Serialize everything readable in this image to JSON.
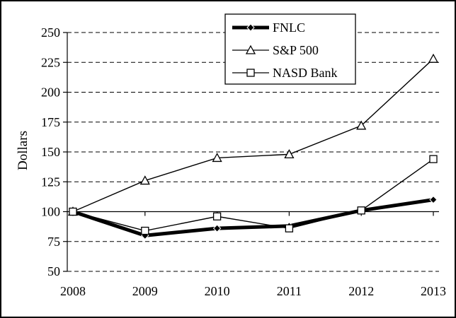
{
  "chart_data": {
    "type": "line",
    "title": "",
    "xlabel": "",
    "ylabel": "Dollars",
    "categories": [
      "2008",
      "2009",
      "2010",
      "2011",
      "2012",
      "2013"
    ],
    "series": [
      {
        "name": "FNLC",
        "marker": "diamond",
        "thick": true,
        "values": [
          100,
          80,
          86,
          88,
          101,
          110
        ]
      },
      {
        "name": "S&P 500",
        "marker": "triangle",
        "thick": false,
        "values": [
          100,
          126,
          145,
          148,
          172,
          228
        ]
      },
      {
        "name": "NASD Bank",
        "marker": "square",
        "thick": false,
        "values": [
          100,
          84,
          96,
          86,
          101,
          144
        ]
      }
    ],
    "ylim": [
      50,
      250
    ],
    "yticks": [
      50,
      75,
      100,
      125,
      150,
      175,
      200,
      225,
      250
    ],
    "baseline": 100,
    "grid": "horizontal-dashed",
    "legend_position": "top-center",
    "line_color": "#000000",
    "background_color": "#ffffff"
  }
}
